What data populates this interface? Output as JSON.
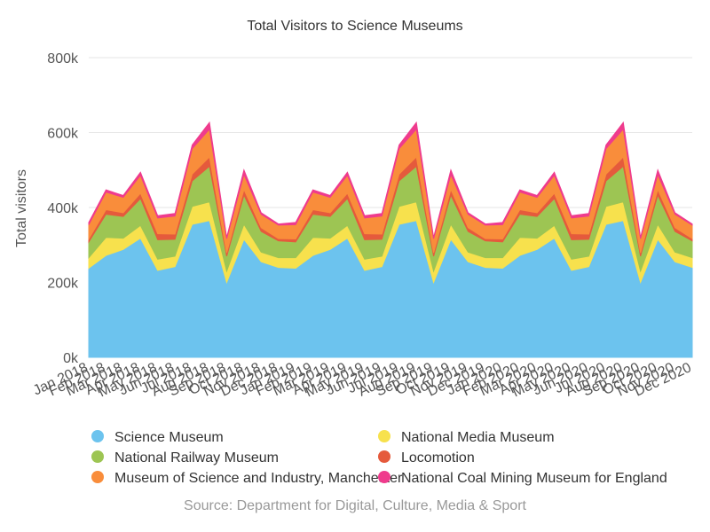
{
  "chart_data": {
    "type": "area",
    "stacked": true,
    "title": "Total Visitors to Science Museums",
    "ylabel": "Total visitors",
    "xlabel": "",
    "source": "Source: Department for Digital, Culture, Media & Sport",
    "ylim": [
      0,
      800000
    ],
    "y_ticks": [
      "0k",
      "200k",
      "400k",
      "600k",
      "800k"
    ],
    "y_tick_values": [
      0,
      200000,
      400000,
      600000,
      800000
    ],
    "grid": true,
    "legend_position": "bottom",
    "categories": [
      "Jan 2018",
      "Feb 2018",
      "Mar 2018",
      "Apr 2018",
      "May 2018",
      "Jun 2018",
      "Jul 2018",
      "Aug 2018",
      "Sep 2018",
      "Oct 2018",
      "Nov 2018",
      "Dec 2018",
      "Jan 2019",
      "Feb 2019",
      "Mar 2019",
      "Apr 2019",
      "May 2019",
      "Jun 2019",
      "Jul 2019",
      "Aug 2019",
      "Sep 2019",
      "Oct 2019",
      "Nov 2019",
      "Dec 2019",
      "Jan 2020",
      "Feb 2020",
      "Mar 2020",
      "Apr 2020",
      "May 2020",
      "Jun 2020",
      "Jul 2020",
      "Aug 2020",
      "Sep 2020",
      "Oct 2020",
      "Nov 2020",
      "Dec 2020"
    ],
    "series": [
      {
        "name": "Science Museum",
        "color": "#6cc3ee",
        "values": [
          238000,
          272000,
          288000,
          318000,
          232000,
          242000,
          355000,
          365000,
          200000,
          315000,
          255000,
          240000,
          238000,
          272000,
          288000,
          318000,
          232000,
          242000,
          355000,
          365000,
          200000,
          315000,
          255000,
          240000,
          238000,
          272000,
          288000,
          318000,
          232000,
          242000,
          355000,
          365000,
          200000,
          315000,
          255000,
          240000
        ]
      },
      {
        "name": "National Media Museum",
        "color": "#f7e14d",
        "values": [
          28000,
          48000,
          30000,
          34000,
          30000,
          28000,
          48000,
          50000,
          30000,
          40000,
          26000,
          26000,
          28000,
          48000,
          30000,
          34000,
          30000,
          28000,
          48000,
          50000,
          30000,
          40000,
          26000,
          26000,
          28000,
          48000,
          30000,
          34000,
          30000,
          28000,
          48000,
          50000,
          30000,
          40000,
          26000,
          26000
        ]
      },
      {
        "name": "National Railway Museum",
        "color": "#9dc553",
        "values": [
          42000,
          62000,
          58000,
          72000,
          52000,
          45000,
          68000,
          95000,
          40000,
          78000,
          55000,
          45000,
          42000,
          62000,
          58000,
          72000,
          52000,
          45000,
          68000,
          95000,
          40000,
          78000,
          55000,
          45000,
          42000,
          62000,
          58000,
          72000,
          52000,
          45000,
          68000,
          95000,
          40000,
          78000,
          55000,
          45000
        ]
      },
      {
        "name": "Locomotion",
        "color": "#e55a3c",
        "values": [
          8000,
          12000,
          10000,
          14000,
          16000,
          14000,
          18000,
          25000,
          9000,
          15000,
          10000,
          6000,
          8000,
          12000,
          10000,
          14000,
          16000,
          14000,
          18000,
          25000,
          9000,
          15000,
          10000,
          6000,
          8000,
          12000,
          10000,
          14000,
          16000,
          14000,
          18000,
          25000,
          9000,
          15000,
          10000,
          6000
        ]
      },
      {
        "name": "Museum of Science and Industry, Manchester",
        "color": "#f98d3b",
        "values": [
          38000,
          47000,
          41000,
          48000,
          42000,
          48000,
          68000,
          74000,
          38000,
          40000,
          36000,
          36000,
          38000,
          47000,
          41000,
          48000,
          42000,
          48000,
          68000,
          74000,
          38000,
          40000,
          36000,
          36000,
          38000,
          47000,
          41000,
          48000,
          42000,
          48000,
          68000,
          74000,
          38000,
          40000,
          36000,
          36000
        ]
      },
      {
        "name": "National Coal Mining Museum for England",
        "color": "#ef3b8d",
        "values": [
          6000,
          6000,
          5000,
          8000,
          6000,
          7000,
          10000,
          18000,
          3000,
          12000,
          4000,
          3000,
          6000,
          6000,
          5000,
          8000,
          6000,
          7000,
          10000,
          18000,
          3000,
          12000,
          4000,
          3000,
          6000,
          6000,
          5000,
          8000,
          6000,
          7000,
          10000,
          18000,
          3000,
          12000,
          4000,
          3000
        ]
      }
    ]
  }
}
